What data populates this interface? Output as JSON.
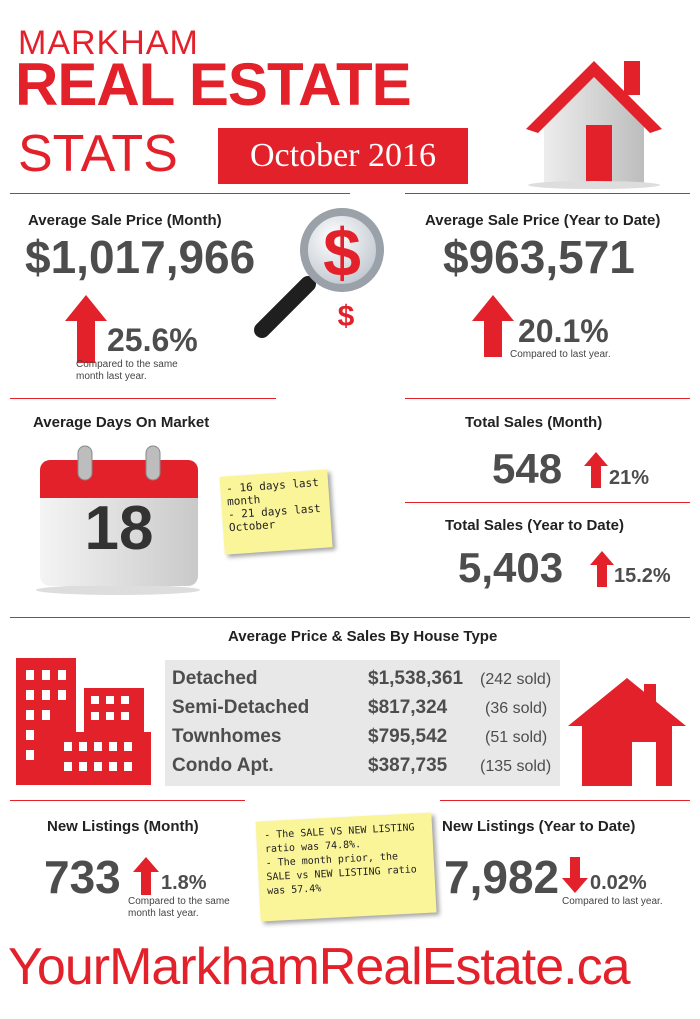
{
  "header": {
    "city": "MARKHAM",
    "title_line1": "REAL ESTATE",
    "title_line2": "STATS",
    "period": "October 2016"
  },
  "avg_price_month": {
    "label": "Average Sale Price (Month)",
    "value": "$1,017,966",
    "change": "25.6%",
    "note": "Compared to the same month last year."
  },
  "avg_price_ytd": {
    "label": "Average Sale Price (Year to Date)",
    "value": "$963,571",
    "change": "20.1%",
    "note": "Compared to last year."
  },
  "days_on_market": {
    "label": "Average Days On Market",
    "value": "18",
    "notes": [
      "- 16 days last month",
      "- 21 days last October"
    ]
  },
  "total_sales_month": {
    "label": "Total Sales (Month)",
    "value": "548",
    "change": "21%"
  },
  "total_sales_ytd": {
    "label": "Total Sales (Year to Date)",
    "value": "5,403",
    "change": "15.2%"
  },
  "house_type": {
    "label": "Average Price & Sales By House Type",
    "rows": [
      {
        "type": "Detached",
        "price": "$1,538,361",
        "sold": "(242 sold)"
      },
      {
        "type": "Semi-Detached",
        "price": "$817,324",
        "sold": "(36 sold)"
      },
      {
        "type": "Townhomes",
        "price": "$795,542",
        "sold": "(51 sold)"
      },
      {
        "type": "Condo Apt.",
        "price": "$387,735",
        "sold": "(135 sold)"
      }
    ]
  },
  "new_listings_month": {
    "label": "New Listings (Month)",
    "value": "733",
    "change": "1.8%",
    "note": "Compared to the same month last year."
  },
  "new_listings_ytd": {
    "label": "New Listings (Year to Date)",
    "value": "7,982",
    "change": "0.02%",
    "note": "Compared to last year."
  },
  "ratio_note": {
    "lines": [
      "- The SALE VS NEW LISTING ratio was 74.8%.",
      "- The month prior, the SALE vs NEW LISTING ratio was 57.4%"
    ]
  },
  "footer": {
    "website": "YourMarkhamRealEstate.ca"
  },
  "colors": {
    "accent": "#e3212b",
    "text": "#4d4d4d",
    "note": "#fbf59a",
    "table": "#e8e8e8"
  },
  "icons": [
    "house-icon",
    "magnifier-dollar-icon",
    "calendar-icon",
    "buildings-icon",
    "up-arrow-icon",
    "down-arrow-icon"
  ]
}
